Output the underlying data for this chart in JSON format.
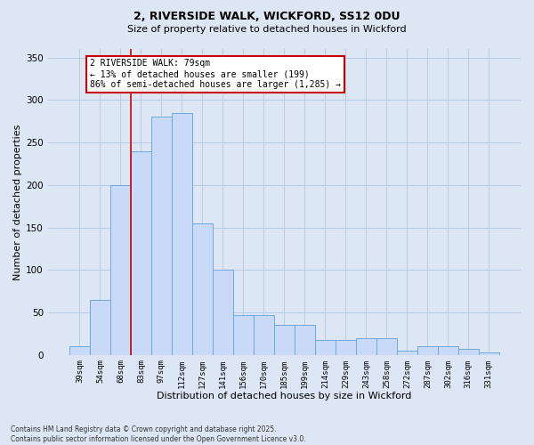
{
  "title1": "2, RIVERSIDE WALK, WICKFORD, SS12 0DU",
  "title2": "Size of property relative to detached houses in Wickford",
  "xlabel": "Distribution of detached houses by size in Wickford",
  "ylabel": "Number of detached properties",
  "categories": [
    "39sqm",
    "54sqm",
    "68sqm",
    "83sqm",
    "97sqm",
    "112sqm",
    "127sqm",
    "141sqm",
    "156sqm",
    "170sqm",
    "185sqm",
    "199sqm",
    "214sqm",
    "229sqm",
    "243sqm",
    "258sqm",
    "272sqm",
    "287sqm",
    "302sqm",
    "316sqm",
    "331sqm"
  ],
  "values": [
    10,
    65,
    200,
    240,
    280,
    285,
    155,
    100,
    47,
    47,
    35,
    35,
    18,
    18,
    20,
    20,
    5,
    10,
    10,
    7,
    3
  ],
  "bar_color": "#c9daf8",
  "bar_edge_color": "#6fa8dc",
  "vline_color": "#cc0000",
  "vline_x_index": 2.5,
  "annotation_text": "2 RIVERSIDE WALK: 79sqm\n← 13% of detached houses are smaller (199)\n86% of semi-detached houses are larger (1,285) →",
  "annotation_box_color": "#ffffff",
  "annotation_box_edge": "#cc0000",
  "ylim": [
    0,
    360
  ],
  "yticks": [
    0,
    50,
    100,
    150,
    200,
    250,
    300,
    350
  ],
  "grid_color": "#b8cce4",
  "background_color": "#dce6f4",
  "footer1": "Contains HM Land Registry data © Crown copyright and database right 2025.",
  "footer2": "Contains public sector information licensed under the Open Government Licence v3.0."
}
